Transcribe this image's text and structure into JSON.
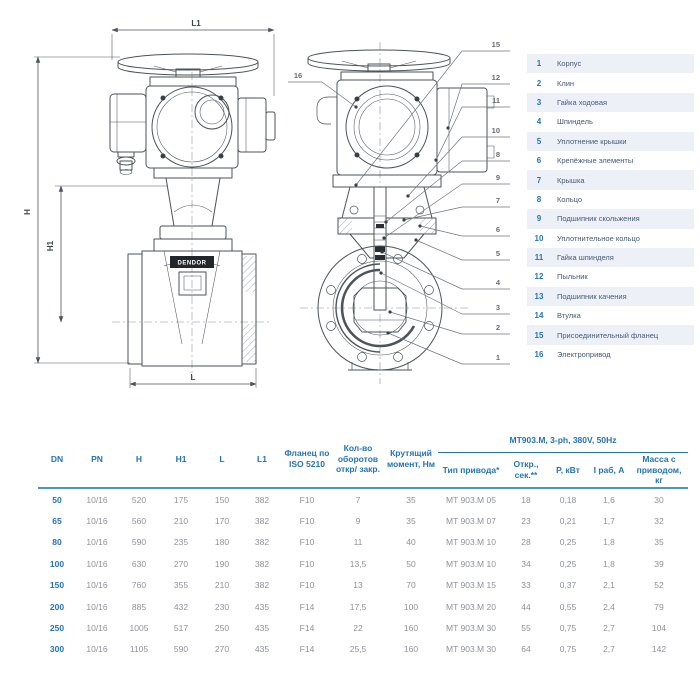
{
  "accent_color": "#2373bc",
  "drawing": {
    "brand_label": "DENDOR",
    "dims": {
      "h": "H",
      "h1": "H1",
      "l": "L",
      "l1": "L1"
    },
    "left_callout": "16",
    "right_callouts": [
      "15",
      "12",
      "11",
      "10",
      "8",
      "9",
      "7",
      "6",
      "5",
      "4",
      "3",
      "2",
      "1"
    ]
  },
  "parts_list": {
    "items": [
      {
        "num": "1",
        "name": "Корпус"
      },
      {
        "num": "2",
        "name": "Клин"
      },
      {
        "num": "3",
        "name": "Гайка ходовая"
      },
      {
        "num": "4",
        "name": "Шпиндель"
      },
      {
        "num": "5",
        "name": "Уплотнение крышки"
      },
      {
        "num": "6",
        "name": "Крепёжные элементы"
      },
      {
        "num": "7",
        "name": "Крышка"
      },
      {
        "num": "8",
        "name": "Кольцо"
      },
      {
        "num": "9",
        "name": "Подшипник скольжения"
      },
      {
        "num": "10",
        "name": "Уплотнительное кольцо"
      },
      {
        "num": "11",
        "name": "Гайка шпинделя"
      },
      {
        "num": "12",
        "name": "Пыльник"
      },
      {
        "num": "13",
        "name": "Подшипник качения"
      },
      {
        "num": "14",
        "name": "Втулка"
      },
      {
        "num": "15",
        "name": "Присоединительный фланец"
      },
      {
        "num": "16",
        "name": "Электропривод"
      }
    ]
  },
  "spec_table": {
    "columns": [
      "DN",
      "PN",
      "H",
      "H1",
      "L",
      "L1",
      "Фланец по ISO 5210",
      "Кол-во оборотов откр/ закр.",
      "Крутящий момент, Нм"
    ],
    "group_header": "MT903.M, 3-ph, 380V, 50Hz",
    "group_columns": [
      "Тип привода*",
      "Откр., сек.**",
      "P, кВт",
      "I раб, А",
      "Масса с приводом, кг"
    ],
    "rows": [
      [
        "50",
        "10/16",
        "520",
        "175",
        "150",
        "382",
        "F10",
        "7",
        "35",
        "MT 903.M 05",
        "18",
        "0,18",
        "1,6",
        "30"
      ],
      [
        "65",
        "10/16",
        "560",
        "210",
        "170",
        "382",
        "F10",
        "9",
        "35",
        "MT 903.M 07",
        "23",
        "0,21",
        "1,7",
        "32"
      ],
      [
        "80",
        "10/16",
        "590",
        "235",
        "180",
        "382",
        "F10",
        "11",
        "40",
        "MT 903.M 10",
        "28",
        "0,25",
        "1,8",
        "35"
      ],
      [
        "100",
        "10/16",
        "630",
        "270",
        "190",
        "382",
        "F10",
        "13,5",
        "50",
        "MT 903.M 10",
        "34",
        "0,25",
        "1,8",
        "39"
      ],
      [
        "150",
        "10/16",
        "760",
        "355",
        "210",
        "382",
        "F10",
        "13",
        "70",
        "MT 903.M 15",
        "33",
        "0,37",
        "2,1",
        "52"
      ],
      [
        "200",
        "10/16",
        "885",
        "432",
        "230",
        "435",
        "F14",
        "17,5",
        "100",
        "MT 903.M 20",
        "44",
        "0,55",
        "2,4",
        "79"
      ],
      [
        "250",
        "10/16",
        "1005",
        "517",
        "250",
        "435",
        "F14",
        "22",
        "160",
        "MT 903.M 30",
        "55",
        "0,75",
        "2,7",
        "104"
      ],
      [
        "300",
        "10/16",
        "1105",
        "590",
        "270",
        "435",
        "F14",
        "25,5",
        "160",
        "MT 903.M 30",
        "64",
        "0,75",
        "2,7",
        "142"
      ]
    ]
  }
}
